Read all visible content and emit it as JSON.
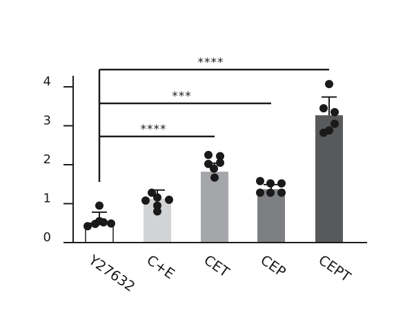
{
  "chart_data": {
    "type": "bar",
    "title": "",
    "xlabel": "",
    "ylabel": "",
    "ylim": [
      0,
      4.2
    ],
    "y_ticks": [
      {
        "value": 0,
        "label": "0"
      },
      {
        "value": 1,
        "label": "1"
      },
      {
        "value": 2,
        "label": "2"
      },
      {
        "value": 3,
        "label": "3"
      },
      {
        "value": 4,
        "label": "4"
      }
    ],
    "categories": [
      "Y27632",
      "C+E",
      "CET",
      "CEP",
      "CEPT"
    ],
    "values": [
      0.5,
      1.13,
      1.82,
      1.37,
      3.27
    ],
    "errors": [
      0.28,
      0.22,
      0.22,
      0.12,
      0.47
    ],
    "colors": [
      "#ffffff",
      "#d2d3d4",
      "#a4a6a9",
      "#7d7f82",
      "#58595b"
    ],
    "points": [
      [
        0.42,
        0.48,
        0.52,
        0.49,
        0.55,
        0.95
      ],
      [
        1.08,
        1.16,
        1.1,
        0.95,
        1.28,
        0.8
      ],
      [
        2.25,
        2.22,
        2.05,
        2.02,
        1.9,
        1.67
      ],
      [
        1.58,
        1.52,
        1.52,
        1.28,
        1.28,
        1.28
      ],
      [
        4.07,
        3.45,
        3.35,
        3.05,
        2.82,
        2.88
      ]
    ],
    "significance": [
      {
        "from": "Y27632",
        "to": "CET",
        "label": "****"
      },
      {
        "from": "Y27632",
        "to": "CEP",
        "label": "***"
      },
      {
        "from": "Y27632",
        "to": "CEPT",
        "label": "****"
      }
    ]
  }
}
